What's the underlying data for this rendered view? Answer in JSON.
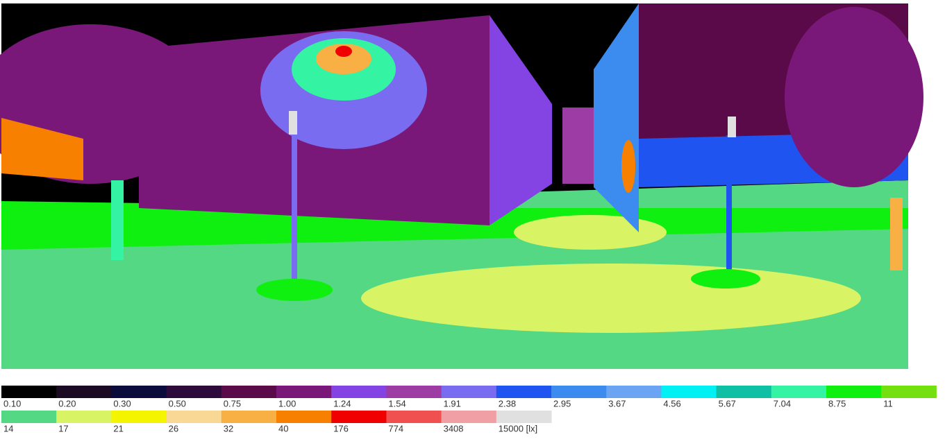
{
  "legend": {
    "rows": [
      [
        {
          "label": "0.10",
          "color": "#000000"
        },
        {
          "label": "0.20",
          "color": "#1c0a22"
        },
        {
          "label": "0.30",
          "color": "#0c0c3c"
        },
        {
          "label": "0.50",
          "color": "#2c0a3c"
        },
        {
          "label": "0.75",
          "color": "#5a0a48"
        },
        {
          "label": "1.00",
          "color": "#7a187a"
        },
        {
          "label": "1.24",
          "color": "#8444e4"
        },
        {
          "label": "1.54",
          "color": "#9c3ca4"
        },
        {
          "label": "1.91",
          "color": "#7a6cf0"
        },
        {
          "label": "2.38",
          "color": "#2054f0"
        },
        {
          "label": "2.95",
          "color": "#3c8cf0"
        },
        {
          "label": "3.67",
          "color": "#6ca4f4"
        },
        {
          "label": "4.56",
          "color": "#00f0f4"
        },
        {
          "label": "5.67",
          "color": "#10c0a4"
        },
        {
          "label": "7.04",
          "color": "#34f4a4"
        },
        {
          "label": "8.75",
          "color": "#10f010"
        },
        {
          "label": "11",
          "color": "#74e010"
        }
      ],
      [
        {
          "label": "14",
          "color": "#54d884"
        },
        {
          "label": "17",
          "color": "#d8f464"
        },
        {
          "label": "21",
          "color": "#f4f400"
        },
        {
          "label": "26",
          "color": "#f8d894"
        },
        {
          "label": "32",
          "color": "#f8b044"
        },
        {
          "label": "40",
          "color": "#f88000"
        },
        {
          "label": "176",
          "color": "#f00000"
        },
        {
          "label": "774",
          "color": "#f05050"
        },
        {
          "label": "3408",
          "color": "#f0a0a4"
        },
        {
          "label": "15000 [lx]",
          "color": "#e0e0e0"
        }
      ]
    ]
  }
}
